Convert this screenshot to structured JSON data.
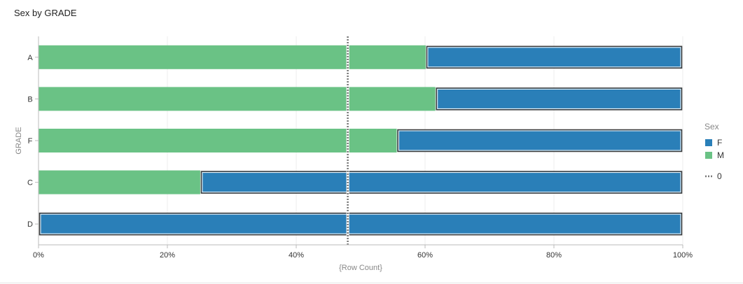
{
  "title": "Sex by GRADE",
  "chart_data": {
    "type": "bar",
    "orientation": "horizontal",
    "stacked": "percent",
    "categories": [
      "A",
      "B",
      "F",
      "C",
      "D"
    ],
    "series": [
      {
        "name": "M",
        "color": "#6ac285",
        "values": [
          60.1,
          61.6,
          55.6,
          25.1,
          0
        ]
      },
      {
        "name": "F",
        "color": "#2a7fb8",
        "values": [
          39.9,
          38.4,
          44.4,
          74.9,
          100
        ]
      }
    ],
    "xlabel": "{Row Count}",
    "ylabel": "GRADE",
    "xlim": [
      0,
      100
    ],
    "xticks": [
      "0%",
      "20%",
      "40%",
      "60%",
      "80%",
      "100%"
    ],
    "xtick_values": [
      0,
      20,
      40,
      60,
      80,
      100
    ],
    "reference_line": {
      "label": "0",
      "value": 48
    },
    "legend": {
      "title": "Sex",
      "placement": "right",
      "items": [
        {
          "name": "F",
          "color": "#2a7fb8"
        },
        {
          "name": "M",
          "color": "#6ac285"
        }
      ]
    },
    "grid": true
  }
}
